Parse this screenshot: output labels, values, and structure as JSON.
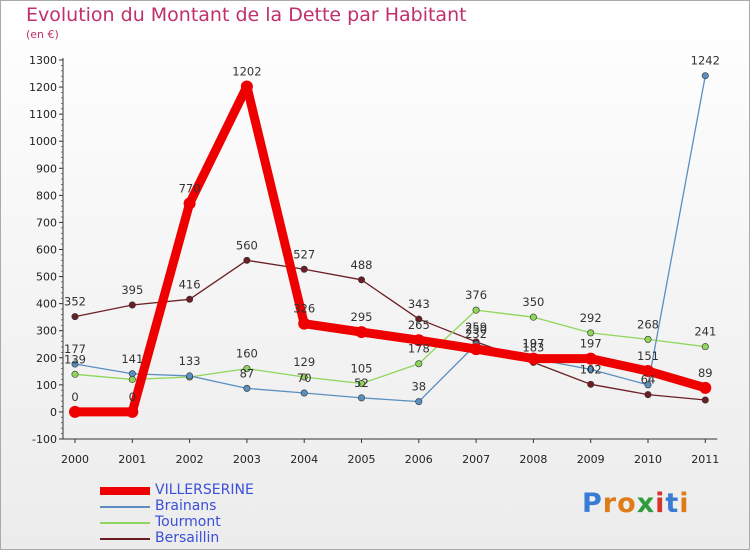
{
  "title": "Evolution du Montant de la Dette par Habitant",
  "subtitle": "(en €)",
  "logo": {
    "letters": [
      "P",
      "r",
      "o",
      "x",
      "i",
      "t",
      "i"
    ],
    "colors": [
      "#3a7bd5",
      "#e07b1a",
      "#e07b1a",
      "#2e9e3b",
      "#d8322b",
      "#3a7bd5",
      "#e07b1a"
    ]
  },
  "chart_data": {
    "type": "line",
    "x": [
      "2000",
      "2001",
      "2002",
      "2003",
      "2004",
      "2005",
      "2006",
      "2007",
      "2008",
      "2009",
      "2010",
      "2011"
    ],
    "ylim": [
      -100,
      1300
    ],
    "yticks": [
      "-100",
      "0",
      "100",
      "200",
      "300",
      "400",
      "500",
      "600",
      "700",
      "800",
      "900",
      "1000",
      "1100",
      "1200",
      "1300"
    ],
    "grid": false,
    "legend_position": "bottom-left",
    "series": [
      {
        "name": "Bersaillin",
        "color": "#6b1f24",
        "width": 1.3,
        "marker": 3.2,
        "values": [
          352,
          395,
          416,
          560,
          527,
          488,
          343,
          259,
          183,
          102,
          64,
          44
        ],
        "labels": [
          "352",
          "395",
          "416",
          "560",
          "527",
          "488",
          "343",
          "259",
          "183",
          "102",
          "64",
          ""
        ]
      },
      {
        "name": "Tourmont",
        "color": "#8fd65a",
        "width": 1.3,
        "marker": 3.2,
        "values": [
          139,
          120,
          129,
          160,
          129,
          105,
          178,
          376,
          350,
          292,
          268,
          241
        ],
        "labels": [
          "139",
          "",
          "",
          "160",
          "129",
          "105",
          "178",
          "376",
          "350",
          "292",
          "268",
          "241"
        ]
      },
      {
        "name": "Brainans",
        "color": "#5b8fc0",
        "width": 1.3,
        "marker": 3.2,
        "values": [
          177,
          141,
          133,
          87,
          70,
          52,
          38,
          250,
          197,
          157,
          100,
          1242
        ],
        "labels": [
          "177",
          "141",
          "133",
          "87",
          "70",
          "52",
          "38",
          "250",
          "197",
          "",
          "",
          "1242"
        ]
      },
      {
        "name": "VILLERSERINE",
        "color": "#ee0000",
        "width": 9,
        "marker": 6,
        "values": [
          0,
          0,
          770,
          1202,
          326,
          295,
          265,
          232,
          197,
          197,
          151,
          89
        ],
        "labels": [
          "0",
          "0",
          "770",
          "1202",
          "326",
          "295",
          "265",
          "232",
          "197",
          "197",
          "151",
          "89"
        ]
      }
    ],
    "legend": [
      {
        "name": "VILLERSERINE",
        "color": "#ee0000",
        "thick": true
      },
      {
        "name": "Brainans",
        "color": "#5b8fc0",
        "thick": false
      },
      {
        "name": "Tourmont",
        "color": "#8fd65a",
        "thick": false
      },
      {
        "name": "Bersaillin",
        "color": "#6b1f24",
        "thick": false
      }
    ]
  }
}
